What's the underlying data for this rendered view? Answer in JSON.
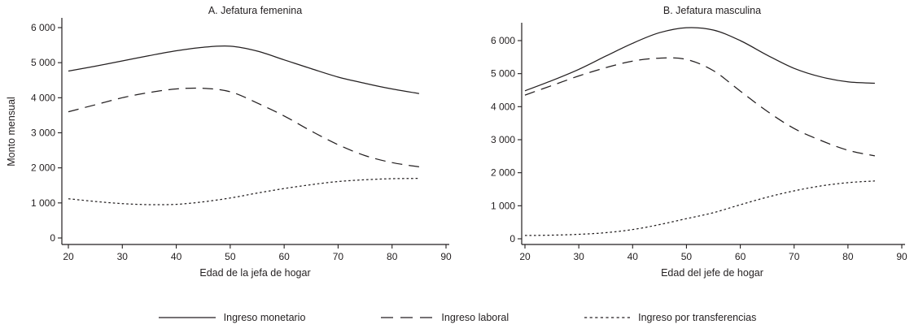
{
  "chart_data": [
    {
      "type": "line",
      "title": "A. Jefatura femenina",
      "xlabel": "Edad de la jefa de hogar",
      "ylabel": "Monto mensual",
      "x": [
        20,
        25,
        30,
        35,
        40,
        45,
        50,
        55,
        60,
        65,
        70,
        75,
        80,
        85
      ],
      "x_ticks": [
        20,
        30,
        40,
        50,
        60,
        70,
        80,
        90
      ],
      "y_ticks": [
        0,
        1000,
        2000,
        3000,
        4000,
        5000,
        6000
      ],
      "y_tick_labels": [
        "0",
        "1 000",
        "2 000",
        "3 000",
        "4 000",
        "5 000",
        "6 000"
      ],
      "xlim": [
        20,
        90
      ],
      "ylim": [
        0,
        6280
      ],
      "grid": false,
      "series": [
        {
          "name": "Ingreso monetario",
          "line_style": "solid",
          "values": [
            4760,
            4900,
            5050,
            5200,
            5340,
            5440,
            5470,
            5330,
            5080,
            4830,
            4590,
            4410,
            4250,
            4120
          ]
        },
        {
          "name": "Ingreso laboral",
          "line_style": "long-dash",
          "values": [
            3600,
            3800,
            4000,
            4150,
            4250,
            4270,
            4170,
            3850,
            3480,
            3050,
            2660,
            2350,
            2150,
            2030
          ]
        },
        {
          "name": "Ingreso por transferencias",
          "line_style": "short-dash",
          "values": [
            1120,
            1040,
            980,
            950,
            960,
            1030,
            1140,
            1280,
            1410,
            1520,
            1610,
            1660,
            1690,
            1700
          ]
        }
      ]
    },
    {
      "type": "line",
      "title": "B. Jefatura masculina",
      "xlabel": "Edad del jefe de hogar",
      "ylabel": "",
      "x": [
        20,
        25,
        30,
        35,
        40,
        45,
        50,
        55,
        60,
        65,
        70,
        75,
        80,
        85
      ],
      "x_ticks": [
        20,
        30,
        40,
        50,
        60,
        70,
        80,
        90
      ],
      "y_ticks": [
        0,
        1000,
        2000,
        3000,
        4000,
        5000,
        6000
      ],
      "y_tick_labels": [
        "0",
        "1 000",
        "2 000",
        "3 000",
        "4 000",
        "5 000",
        "6 000"
      ],
      "xlim": [
        20,
        90
      ],
      "ylim": [
        0,
        6540
      ],
      "grid": false,
      "series": [
        {
          "name": "Ingreso monetario",
          "line_style": "solid",
          "values": [
            4480,
            4790,
            5130,
            5530,
            5920,
            6240,
            6390,
            6320,
            6000,
            5560,
            5160,
            4900,
            4750,
            4710
          ]
        },
        {
          "name": "Ingreso laboral",
          "line_style": "long-dash",
          "values": [
            4350,
            4640,
            4930,
            5180,
            5380,
            5470,
            5430,
            5090,
            4470,
            3860,
            3340,
            2975,
            2680,
            2510
          ]
        },
        {
          "name": "Ingreso por transferencias",
          "line_style": "short-dash",
          "values": [
            100,
            110,
            135,
            185,
            280,
            430,
            610,
            790,
            1030,
            1260,
            1450,
            1600,
            1700,
            1750
          ]
        }
      ]
    }
  ],
  "legend": {
    "position": "bottom-center",
    "items": [
      {
        "label": "Ingreso monetario",
        "line_style": "solid"
      },
      {
        "label": "Ingreso laboral",
        "line_style": "long-dash"
      },
      {
        "label": "Ingreso por transferencias",
        "line_style": "short-dash"
      }
    ]
  },
  "colors": {
    "line": "#231f20",
    "background": "#ffffff"
  }
}
